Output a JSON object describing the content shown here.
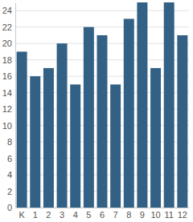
{
  "chart_data": {
    "type": "bar",
    "categories": [
      "K",
      "1",
      "2",
      "3",
      "4",
      "5",
      "6",
      "7",
      "8",
      "9",
      "10",
      "11",
      "12"
    ],
    "values": [
      19,
      16,
      17,
      20,
      15,
      22,
      21,
      15,
      23,
      25,
      17,
      25,
      21
    ],
    "color": "#336185",
    "ylim": [
      0,
      25
    ],
    "yticks": [
      0,
      2,
      4,
      6,
      8,
      10,
      12,
      14,
      16,
      18,
      20,
      22,
      24
    ],
    "grid": true
  }
}
